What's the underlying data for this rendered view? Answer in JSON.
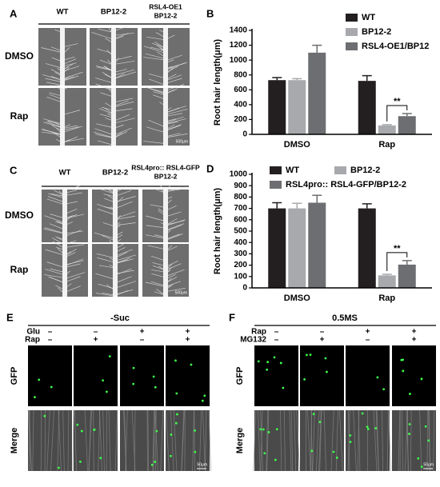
{
  "panels": {
    "A": {
      "label": "A",
      "columns": [
        [
          "WT"
        ],
        [
          "BP12-2"
        ],
        [
          "RSL4-OE1",
          "BP12-2"
        ]
      ],
      "rows": [
        "DMSO",
        "Rap"
      ],
      "scale_bar": "500μm"
    },
    "C": {
      "label": "C",
      "columns": [
        [
          "WT"
        ],
        [
          "BP12-2"
        ],
        [
          "RSL4pro:: RSL4-GFP",
          "BP12-2"
        ]
      ],
      "rows": [
        "DMSO",
        "Rap"
      ],
      "scale_bar": "500μm"
    },
    "E": {
      "label": "E",
      "title": "-Suc",
      "treatments": [
        {
          "name": "Glu",
          "states": [
            "–",
            "–",
            "+",
            "+"
          ]
        },
        {
          "name": "Rap",
          "states": [
            "–",
            "+",
            "–",
            "+"
          ]
        }
      ],
      "rows": [
        "GFP",
        "Merge"
      ],
      "scale_bar": "50μm"
    },
    "F": {
      "label": "F",
      "title": "0.5MS",
      "treatments": [
        {
          "name": "Rap",
          "states": [
            "–",
            "–",
            "+",
            "+"
          ]
        },
        {
          "name": "MG132",
          "states": [
            "–",
            "+",
            "–",
            "+"
          ]
        }
      ],
      "rows": [
        "GFP",
        "Merge"
      ],
      "scale_bar": "50μm"
    }
  },
  "chart_data": [
    {
      "label": "B",
      "type": "bar",
      "y_label": "Root hair length(μm)",
      "categories": [
        "DMSO",
        "Rap"
      ],
      "series": [
        {
          "name": "WT",
          "color": "#231f20",
          "values": [
            730,
            720
          ],
          "errors": [
            35,
            70
          ]
        },
        {
          "name": "BP12-2",
          "color": "#a7a9ac",
          "values": [
            730,
            120
          ],
          "errors": [
            20,
            10
          ]
        },
        {
          "name": "RSL4-OE1/BP12",
          "color": "#6d6e71",
          "values": [
            1100,
            245
          ],
          "errors": [
            100,
            35
          ]
        }
      ],
      "ylim": [
        0,
        1400
      ],
      "yticks": [
        0,
        200,
        400,
        600,
        800,
        1000,
        1200,
        1400
      ],
      "significance": "**"
    },
    {
      "label": "D",
      "type": "bar",
      "y_label": "Root hair length(μm)",
      "categories": [
        "DMSO",
        "Rap"
      ],
      "series": [
        {
          "name": "WT",
          "color": "#231f20",
          "values": [
            700,
            700
          ],
          "errors": [
            50,
            40
          ]
        },
        {
          "name": "BP12-2",
          "color": "#a7a9ac",
          "values": [
            700,
            110
          ],
          "errors": [
            45,
            10
          ]
        },
        {
          "name": "RSL4pro:: RSL4-GFP/BP12-2",
          "color": "#6d6e71",
          "values": [
            750,
            205
          ],
          "errors": [
            65,
            35
          ]
        }
      ],
      "ylim": [
        0,
        1000
      ],
      "yticks": [
        0,
        100,
        200,
        300,
        400,
        500,
        600,
        700,
        800,
        900,
        1000
      ],
      "significance": "**"
    }
  ]
}
